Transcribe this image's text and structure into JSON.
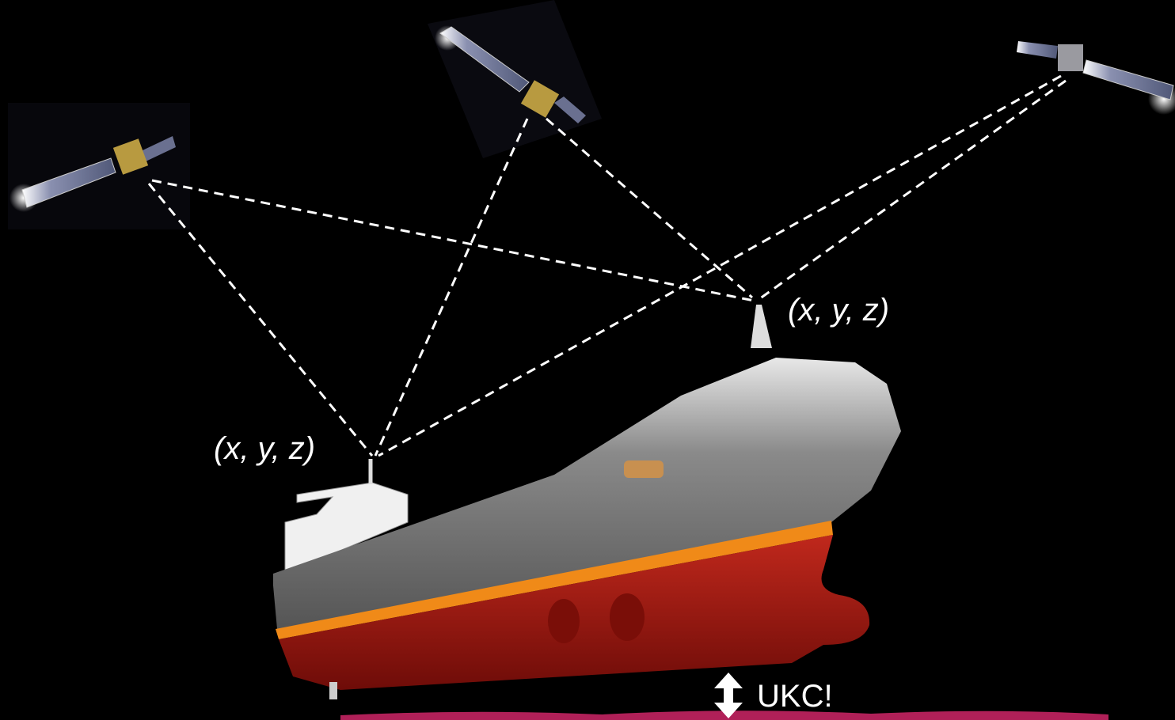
{
  "labels": [
    {
      "text": "(x, y, z)"
    },
    {
      "text": "(x, y, z)"
    }
  ],
  "ukc": {
    "text": "UKC!"
  }
}
